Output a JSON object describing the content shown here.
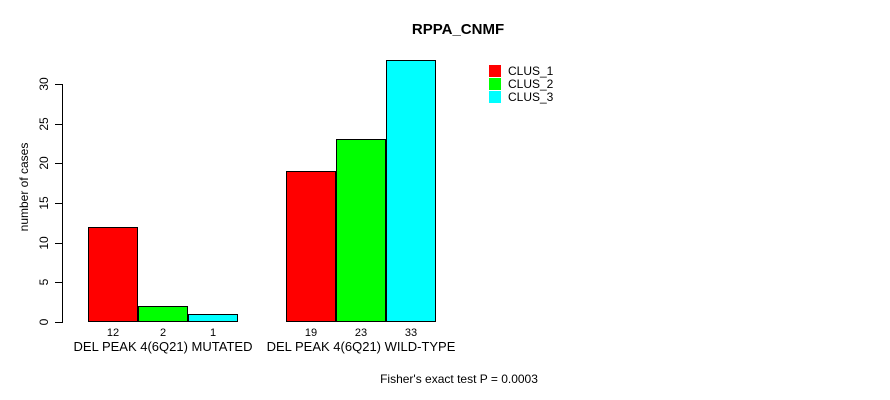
{
  "chart_data": {
    "type": "bar",
    "title": "RPPA_CNMF",
    "xlabel": "",
    "ylabel": "number of cases",
    "categories": [
      "DEL PEAK 4(6Q21) MUTATED",
      "DEL PEAK 4(6Q21) WILD-TYPE"
    ],
    "series": [
      {
        "name": "CLUS_1",
        "color": "#ff0000",
        "values": [
          12,
          19
        ]
      },
      {
        "name": "CLUS_2",
        "color": "#00ff00",
        "values": [
          2,
          23
        ]
      },
      {
        "name": "CLUS_3",
        "color": "#00ffff",
        "values": [
          1,
          33
        ]
      }
    ],
    "bar_value_labels": [
      [
        12,
        2,
        1
      ],
      [
        19,
        23,
        33
      ]
    ],
    "yticks": [
      0,
      5,
      10,
      15,
      20,
      25,
      30
    ],
    "ylim": [
      0,
      33
    ],
    "grid": false,
    "legend_position": "top-right",
    "legend_entries": [
      "CLUS_1",
      "CLUS_2",
      "CLUS_3"
    ],
    "annotation": "Fisher's exact test P = 0.0003",
    "axis_color": "#000000",
    "bar_border_color": "#000000",
    "background_color": "#ffffff"
  }
}
